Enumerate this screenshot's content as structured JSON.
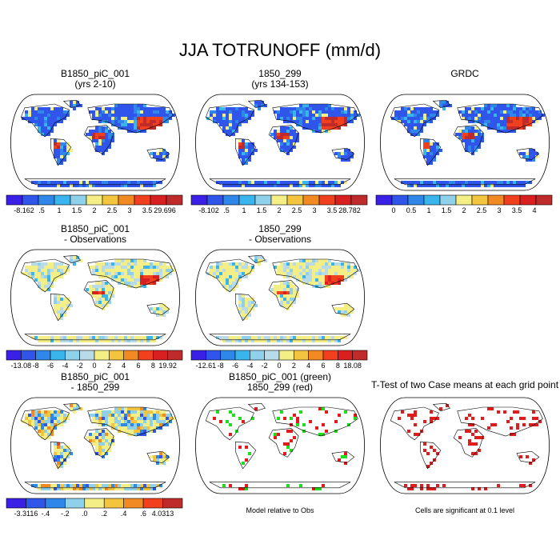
{
  "page_title": "JJA TOTRUNOFF (mm/d)",
  "colors": {
    "bg": "#ffffff",
    "land_default": "#3a62e6",
    "ocean": "#ffffff",
    "outline": "#000000"
  },
  "panels": [
    {
      "id": "p1",
      "title_lines": [
        "B1850_piC_001",
        "(yrs 2-10)"
      ],
      "kind": "field",
      "colorbar": {
        "labels": [
          "-8.162",
          ".5",
          "1",
          "1.5",
          "2",
          "2.5",
          "3",
          "3.5",
          "29.696"
        ],
        "colors": [
          "#3a1fe6",
          "#2f55ea",
          "#2f87ea",
          "#39b4ec",
          "#8fd1ea",
          "#f4ee86",
          "#f3c43d",
          "#f28a24",
          "#f1401e",
          "#d92020",
          "#bf2a2a"
        ]
      }
    },
    {
      "id": "p2",
      "title_lines": [
        "1850_299",
        "(yrs 134-153)"
      ],
      "kind": "field",
      "colorbar": {
        "labels": [
          "-8.102",
          ".5",
          "1",
          "1.5",
          "2",
          "2.5",
          "3",
          "3.5",
          "28.782"
        ],
        "colors": [
          "#3a1fe6",
          "#2f55ea",
          "#2f87ea",
          "#39b4ec",
          "#8fd1ea",
          "#f4ee86",
          "#f3c43d",
          "#f28a24",
          "#f1401e",
          "#d92020",
          "#bf2a2a"
        ]
      }
    },
    {
      "id": "p3",
      "title_lines": [
        "",
        "GRDC"
      ],
      "kind": "field",
      "colorbar": {
        "labels": [
          "0",
          "0.5",
          "1",
          "1.5",
          "2",
          "2.5",
          "3",
          "3.5",
          "4"
        ],
        "colors": [
          "#3a1fe6",
          "#2f55ea",
          "#2f87ea",
          "#39b4ec",
          "#8fd1ea",
          "#f4ee86",
          "#f3c43d",
          "#f28a24",
          "#f1401e",
          "#d92020",
          "#bf2a2a"
        ]
      }
    },
    {
      "id": "p4",
      "title_lines": [
        "B1850_piC_001",
        "- Observations"
      ],
      "kind": "diff",
      "colorbar": {
        "labels": [
          "-13.08",
          "-8",
          "-6",
          "-4",
          "-2",
          "0",
          "2",
          "4",
          "6",
          "8",
          "19.92"
        ],
        "colors": [
          "#3a1fe6",
          "#2f55ea",
          "#2f87ea",
          "#39b4ec",
          "#8fd1ea",
          "#b9dbe9",
          "#f4ee86",
          "#f3c43d",
          "#f28a24",
          "#f1401e",
          "#d92020",
          "#bf2a2a"
        ]
      }
    },
    {
      "id": "p5",
      "title_lines": [
        "1850_299",
        "- Observations"
      ],
      "kind": "diff",
      "colorbar": {
        "labels": [
          "-12.61",
          "-8",
          "-6",
          "-4",
          "-2",
          "0",
          "2",
          "4",
          "6",
          "8",
          "18.08"
        ],
        "colors": [
          "#3a1fe6",
          "#2f55ea",
          "#2f87ea",
          "#39b4ec",
          "#8fd1ea",
          "#b9dbe9",
          "#f4ee86",
          "#f3c43d",
          "#f28a24",
          "#f1401e",
          "#d92020",
          "#bf2a2a"
        ]
      }
    },
    {
      "id": "p7",
      "title_lines": [
        "B1850_piC_001",
        "- 1850_299"
      ],
      "kind": "diff2",
      "colorbar": {
        "labels": [
          "-3.3116",
          "-.4",
          "-.2",
          ".0",
          ".2",
          ".4",
          ".6",
          "4.0313"
        ],
        "colors": [
          "#3a1fe6",
          "#2f55ea",
          "#2f87ea",
          "#8fd1ea",
          "#f4ee86",
          "#f3c43d",
          "#f28a24",
          "#f1401e",
          "#bf2a2a"
        ]
      }
    },
    {
      "id": "p8",
      "title_lines": [
        "B1850_piC_001 (green)",
        "1850_299 (red)"
      ],
      "kind": "sparse",
      "note": "Model relative to Obs"
    },
    {
      "id": "p9",
      "title_lines": [
        "T-Test of two Case means at each grid point",
        ""
      ],
      "kind": "ttest",
      "note": "Cells are significant at 0.1 level"
    }
  ]
}
